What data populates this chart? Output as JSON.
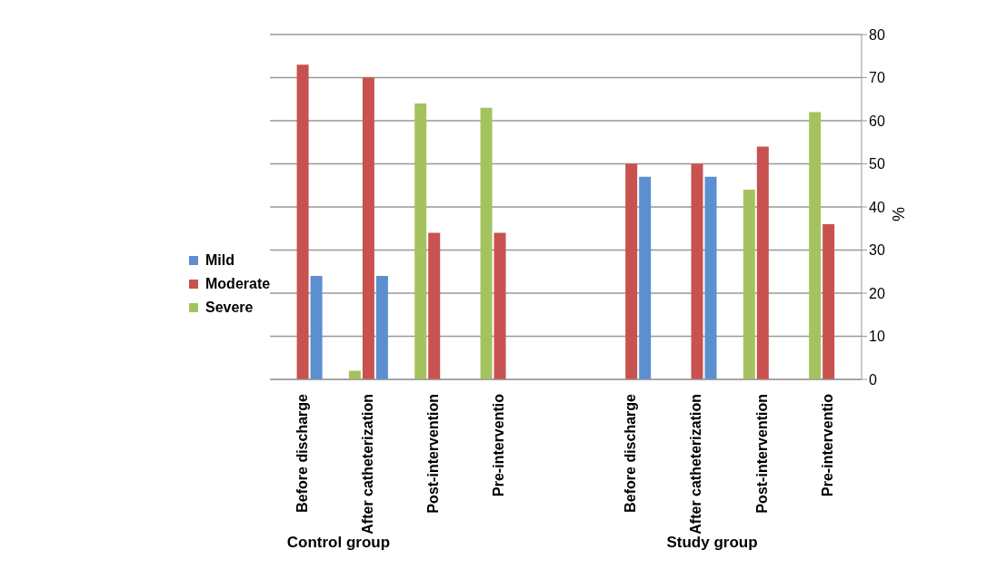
{
  "chart_data": {
    "type": "bar",
    "ylabel": "%",
    "categories": [
      "Before discharge",
      "After catheterization",
      "Post-intervention",
      "Pre-interventio",
      null,
      "Before discharge",
      "After catheterization",
      "Post-intervention",
      "Pre-interventio"
    ],
    "series": [
      {
        "name": "Mild",
        "color": "#5b8fd0",
        "values": [
          24,
          24,
          0,
          0,
          null,
          47,
          47,
          0,
          0
        ]
      },
      {
        "name": "Moderate",
        "color": "#c85250",
        "values": [
          73,
          70,
          34,
          34,
          null,
          50,
          50,
          54,
          36
        ]
      },
      {
        "name": "Severe",
        "color": "#a4c35f",
        "values": [
          0,
          2,
          64,
          63,
          null,
          0,
          0,
          44,
          62
        ]
      }
    ],
    "annotations": [
      "Control group",
      "Study group"
    ],
    "ylim": [
      0,
      80
    ],
    "yticks": [
      0,
      10,
      20,
      30,
      40,
      50,
      60,
      70,
      80
    ],
    "grid": "y",
    "legend": "left"
  }
}
